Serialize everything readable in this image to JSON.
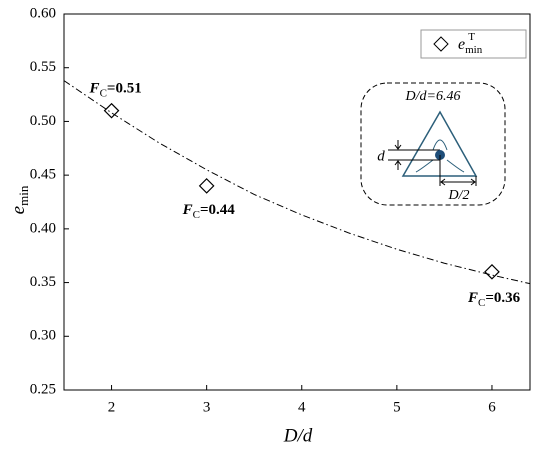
{
  "chart_data": {
    "type": "scatter",
    "x_label": "D/d",
    "y_label": {
      "base": "e",
      "sub": "min"
    },
    "xlim": [
      1.5,
      6.4
    ],
    "ylim": [
      0.25,
      0.6
    ],
    "xticks": [
      2,
      3,
      4,
      5,
      6
    ],
    "yticks": [
      {
        "value": 0.25,
        "label": "0.25"
      },
      {
        "value": 0.3,
        "label": "0.30"
      },
      {
        "value": 0.35,
        "label": "0.35"
      },
      {
        "value": 0.4,
        "label": "0.40"
      },
      {
        "value": 0.45,
        "label": "0.45"
      },
      {
        "value": 0.5,
        "label": "0.50"
      },
      {
        "value": 0.55,
        "label": "0.55"
      },
      {
        "value": 0.6,
        "label": "0.60"
      }
    ],
    "series": [
      {
        "name": "e",
        "name_sub": "min",
        "name_sup": "T",
        "color": "#000000",
        "marker": "diamond",
        "x": [
          2,
          3,
          6
        ],
        "values": [
          0.51,
          0.44,
          0.36
        ]
      },
      {
        "type": "line",
        "style": "dash-dot",
        "color": "#000000",
        "x": [
          1.5,
          2,
          2.5,
          3,
          3.5,
          4,
          4.5,
          5,
          5.5,
          6,
          6.4
        ],
        "values": [
          0.538,
          0.508,
          0.48,
          0.455,
          0.432,
          0.413,
          0.396,
          0.381,
          0.368,
          0.357,
          0.349
        ]
      }
    ],
    "annotations": [
      {
        "base": "F",
        "sub": "C",
        "text": "=0.51"
      },
      {
        "base": "F",
        "sub": "C",
        "text": "=0.44"
      },
      {
        "base": "F",
        "sub": "C",
        "text": "=0.36"
      }
    ],
    "inset": {
      "title": "D/d=6.46",
      "d_label": "d",
      "half_label": "D/2"
    },
    "legend": "top-right"
  }
}
